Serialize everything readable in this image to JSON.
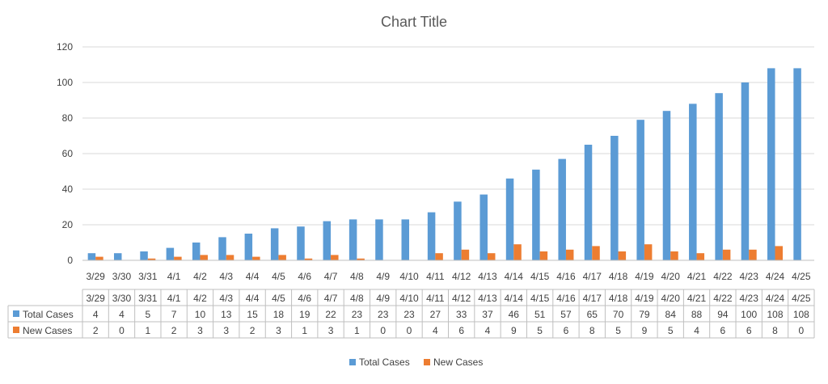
{
  "chart_data": {
    "type": "bar",
    "title": "Chart Title",
    "xlabel": "",
    "ylabel": "",
    "ylim": [
      0,
      120
    ],
    "yticks": [
      0,
      20,
      40,
      60,
      80,
      100,
      120
    ],
    "grid": true,
    "legend_position": "bottom",
    "categories": [
      "3/29",
      "3/30",
      "3/31",
      "4/1",
      "4/2",
      "4/3",
      "4/4",
      "4/5",
      "4/6",
      "4/7",
      "4/8",
      "4/9",
      "4/10",
      "4/11",
      "4/12",
      "4/13",
      "4/14",
      "4/15",
      "4/16",
      "4/17",
      "4/18",
      "4/19",
      "4/20",
      "4/21",
      "4/22",
      "4/23",
      "4/24",
      "4/25"
    ],
    "series": [
      {
        "name": "Total Cases",
        "color": "#5B9BD5",
        "values": [
          4,
          4,
          5,
          7,
          10,
          13,
          15,
          18,
          19,
          22,
          23,
          23,
          23,
          27,
          33,
          37,
          46,
          51,
          57,
          65,
          70,
          79,
          84,
          88,
          94,
          100,
          108,
          108
        ]
      },
      {
        "name": "New Cases",
        "color": "#ED7D31",
        "values": [
          2,
          0,
          1,
          2,
          3,
          3,
          2,
          3,
          1,
          3,
          1,
          0,
          0,
          4,
          6,
          4,
          9,
          5,
          6,
          8,
          5,
          9,
          5,
          4,
          6,
          6,
          8,
          0
        ]
      }
    ],
    "data_table": true
  }
}
